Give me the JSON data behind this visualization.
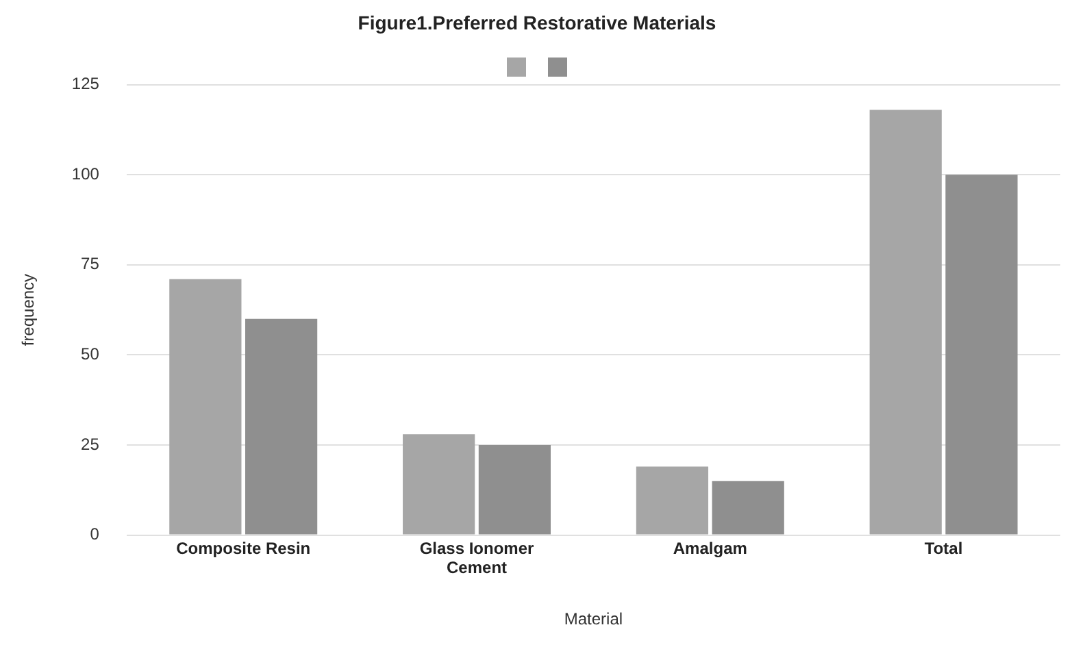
{
  "chart_data": {
    "type": "bar",
    "title": "Figure1.Preferred Restorative Materials",
    "xlabel": "Material",
    "ylabel": "frequency",
    "categories": [
      "Composite Resin",
      "Glass Ionomer Cement",
      "Amalgam",
      "Total"
    ],
    "series": [
      {
        "color": "#a6a6a6",
        "values": [
          71,
          28,
          19,
          118
        ]
      },
      {
        "color": "#8f8f8f",
        "values": [
          60,
          25,
          15,
          100
        ]
      }
    ],
    "ylim": [
      0,
      125
    ],
    "yticks": [
      0,
      25,
      50,
      75,
      100,
      125
    ],
    "grid": "y"
  }
}
